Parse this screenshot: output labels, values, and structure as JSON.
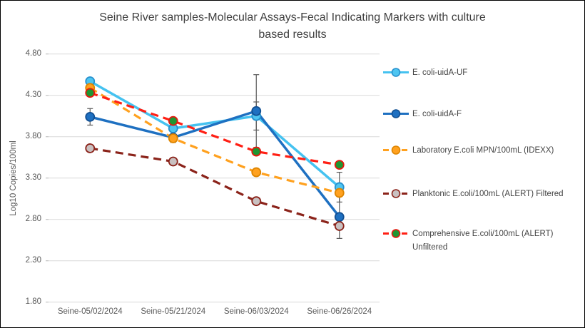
{
  "window": {
    "background": "#FFFFFF",
    "border_color": "#000000",
    "grid_color": "#D9D9D9",
    "axis_text_color": "#595959",
    "title_color": "#3F3F3F"
  },
  "chart_data": {
    "type": "line",
    "title": "Seine River samples-Molecular Assays-Fecal Indicating Markers with culture based results",
    "title_lines": [
      "Seine River samples-Molecular Assays-Fecal Indicating Markers with culture",
      "based results"
    ],
    "xlabel": "",
    "ylabel": "Log10 Copies/100ml",
    "grid": true,
    "legend_position": "right",
    "y_axis": {
      "min": 1.8,
      "max": 4.8,
      "step": 0.5,
      "tick_labels": [
        "4.80",
        "4.30",
        "3.80",
        "3.30",
        "2.80",
        "2.30",
        "1.80"
      ]
    },
    "categories": [
      "Seine-05/02/2024",
      "Seine-05/21/2024",
      "Seine-06/03/2024",
      "Seine-06/26/2024"
    ],
    "series": [
      {
        "name": "E. coli-uidA-UF",
        "values": [
          4.47,
          3.9,
          4.05,
          3.19
        ],
        "error_bars": [
          null,
          null,
          0.17,
          0.18
        ],
        "line_color": "#45C2F0",
        "line_style": "solid",
        "marker_fill": "#4EC5F1",
        "marker_border": "#2791CE"
      },
      {
        "name": "E. coli-uidA-F",
        "values": [
          4.04,
          3.79,
          4.11,
          2.83
        ],
        "error_bars": [
          0.1,
          null,
          0.44,
          0.26
        ],
        "line_color": "#1E70C1",
        "line_style": "solid",
        "marker_fill": "#1E70C1",
        "marker_border": "#124F92"
      },
      {
        "name": "Laboratory E.coli MPN/100mL (IDEXX)",
        "values": [
          4.39,
          3.78,
          3.37,
          3.12
        ],
        "error_bars": [
          null,
          0.05,
          null,
          null
        ],
        "line_color": "#FFA11F",
        "line_style": "dashed",
        "marker_fill": "#FFA11F",
        "marker_border": "#DE8500"
      },
      {
        "name": "Planktonic E.coli/100mL (ALERT) Filtered",
        "values": [
          3.66,
          3.5,
          3.02,
          2.72
        ],
        "error_bars": [
          null,
          null,
          null,
          null
        ],
        "line_color": "#8B231A",
        "line_style": "dashed",
        "marker_fill": "#C9C1C1",
        "marker_border": "#8B231A"
      },
      {
        "name": "Comprehensive E.coli/100mL (ALERT) Unfiltered",
        "values": [
          4.33,
          3.99,
          3.62,
          3.46
        ],
        "error_bars": [
          null,
          null,
          null,
          null
        ],
        "line_color": "#FF1F14",
        "line_style": "dashed",
        "marker_fill": "#1F9632",
        "marker_border": "#E8170D"
      }
    ],
    "error_bar_color": "#595959"
  }
}
